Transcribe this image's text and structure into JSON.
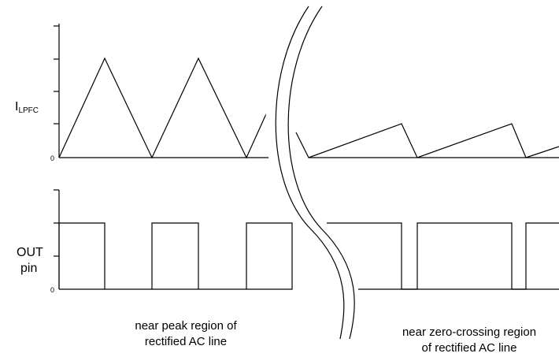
{
  "upper_panel": {
    "label_main": "I",
    "label_subscript": "LPFC",
    "zero_label": "0"
  },
  "lower_panel": {
    "label_line1": "OUT",
    "label_line2": "pin",
    "zero_label": "0"
  },
  "captions": {
    "left_line1": "near peak region of",
    "left_line2": "rectified AC line",
    "right_line1": "near zero-crossing region",
    "right_line2": "of rectified AC line"
  }
}
